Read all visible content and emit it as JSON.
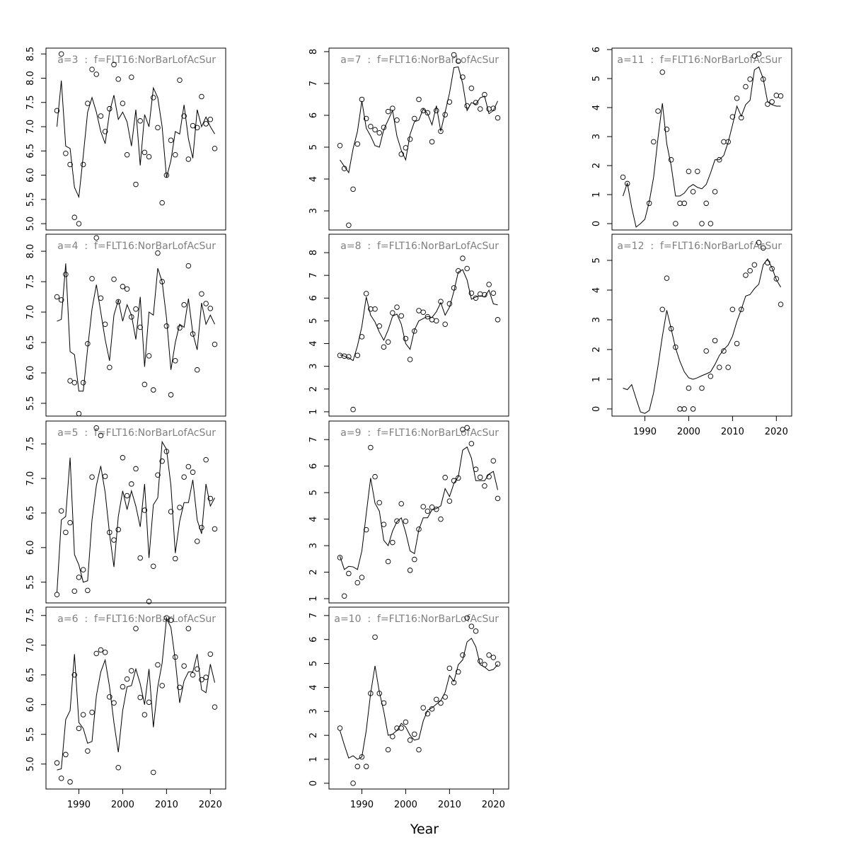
{
  "x": [
    1985,
    1986,
    1987,
    1988,
    1989,
    1990,
    1991,
    1992,
    1993,
    1994,
    1995,
    1996,
    1997,
    1998,
    1999,
    2000,
    2001,
    2002,
    2003,
    2004,
    2005,
    2006,
    2007,
    2008,
    2009,
    2010,
    2011,
    2012,
    2013,
    2014,
    2015,
    2016,
    2017,
    2018,
    2019,
    2020,
    2021
  ],
  "xlim": [
    1982.5,
    2023.5
  ],
  "xticks": [
    1990,
    2000,
    2010,
    2020
  ],
  "xlabel": "Year",
  "chart_data": [
    {
      "type": "scatter-line",
      "title": "a=3  :  f=FLT16:NorBarLofAcSur",
      "ylim": [
        4.87,
        8.62
      ],
      "yticks": [
        {
          "value": 5,
          "label": "5.0"
        },
        {
          "value": 5.5,
          "label": "5.5"
        },
        {
          "value": 6,
          "label": "6.0"
        },
        {
          "value": 6.5,
          "label": "6.5"
        },
        {
          "value": 7,
          "label": "7.0"
        },
        {
          "value": 7.5,
          "label": "7.5"
        },
        {
          "value": 8,
          "label": "8.0"
        },
        {
          "value": 8.5,
          "label": "8.5"
        }
      ],
      "points": [
        7.33,
        8.5,
        6.45,
        6.22,
        5.13,
        5.0,
        6.22,
        7.48,
        8.18,
        8.08,
        7.22,
        6.9,
        7.37,
        8.28,
        7.98,
        7.48,
        6.42,
        8.02,
        5.81,
        7.12,
        6.47,
        6.38,
        7.6,
        6.98,
        5.43,
        6.0,
        6.72,
        6.42,
        7.96,
        7.22,
        6.33,
        7.02,
        6.98,
        7.62,
        7.06,
        7.15,
        6.55
      ],
      "line": [
        7.0,
        7.95,
        6.6,
        6.55,
        5.75,
        5.55,
        6.4,
        7.3,
        7.6,
        7.3,
        6.9,
        6.65,
        7.3,
        7.65,
        7.15,
        7.3,
        7.1,
        6.6,
        7.35,
        6.2,
        7.25,
        7.0,
        7.8,
        7.6,
        7.0,
        5.95,
        6.3,
        6.9,
        6.85,
        7.45,
        6.75,
        6.35,
        7.35,
        7.0,
        7.2,
        7.0,
        6.85
      ]
    },
    {
      "type": "scatter-line",
      "title": "a=4  :  f=FLT16:NorBarLofAcSur",
      "ylim": [
        5.29,
        8.28
      ],
      "yticks": [
        {
          "value": 5.5,
          "label": "5.5"
        },
        {
          "value": 6,
          "label": "6.0"
        },
        {
          "value": 6.5,
          "label": "6.5"
        },
        {
          "value": 7,
          "label": "7.0"
        },
        {
          "value": 7.5,
          "label": "7.5"
        },
        {
          "value": 8,
          "label": "8.0"
        }
      ],
      "points": [
        7.25,
        7.2,
        7.62,
        5.87,
        5.84,
        5.33,
        5.84,
        6.48,
        7.55,
        8.22,
        7.23,
        6.8,
        6.09,
        7.54,
        7.17,
        7.42,
        7.38,
        6.92,
        7.05,
        6.75,
        5.81,
        6.28,
        5.72,
        7.97,
        7.5,
        6.77,
        5.64,
        6.2,
        6.74,
        7.12,
        7.76,
        6.64,
        6.05,
        7.3,
        7.14,
        7.06,
        6.47
      ],
      "line": [
        6.85,
        6.88,
        7.8,
        6.35,
        6.3,
        5.7,
        5.7,
        6.4,
        7.05,
        7.45,
        7.0,
        6.55,
        6.2,
        6.95,
        7.2,
        6.85,
        7.12,
        6.95,
        6.55,
        7.25,
        6.1,
        7.0,
        6.95,
        7.72,
        7.5,
        6.9,
        6.05,
        6.5,
        6.8,
        6.75,
        7.22,
        6.65,
        6.38,
        7.15,
        6.8,
        6.95,
        6.8
      ]
    },
    {
      "type": "scatter-line",
      "title": "a=5  :  f=FLT16:NorBarLofAcSur",
      "ylim": [
        5.2,
        7.83
      ],
      "yticks": [
        {
          "value": 5.5,
          "label": "5.5"
        },
        {
          "value": 6,
          "label": "6.0"
        },
        {
          "value": 6.5,
          "label": "6.5"
        },
        {
          "value": 7,
          "label": "7.0"
        },
        {
          "value": 7.5,
          "label": "7.5"
        }
      ],
      "points": [
        5.32,
        6.53,
        6.22,
        6.36,
        5.37,
        5.57,
        5.68,
        5.38,
        7.02,
        7.73,
        7.62,
        7.03,
        6.22,
        6.11,
        6.26,
        7.3,
        6.75,
        6.92,
        7.14,
        5.85,
        6.54,
        5.22,
        5.73,
        7.05,
        7.25,
        7.39,
        6.52,
        5.84,
        6.58,
        7.02,
        7.17,
        7.09,
        6.09,
        6.29,
        7.27,
        6.71,
        6.27
      ],
      "line": [
        5.35,
        6.4,
        6.45,
        7.3,
        5.9,
        5.75,
        5.5,
        5.52,
        6.4,
        6.9,
        7.18,
        6.8,
        6.2,
        5.72,
        6.45,
        6.82,
        6.55,
        6.82,
        6.6,
        6.3,
        6.92,
        5.85,
        6.62,
        6.72,
        7.53,
        7.42,
        6.9,
        5.92,
        6.38,
        6.65,
        6.65,
        6.98,
        6.4,
        6.2,
        6.92,
        6.6,
        6.72
      ]
    },
    {
      "type": "scatter-line",
      "title": "a=6  :  f=FLT16:NorBarLofAcSur",
      "ylim": [
        4.58,
        7.64
      ],
      "yticks": [
        {
          "value": 5,
          "label": "5.0"
        },
        {
          "value": 5.5,
          "label": "5.5"
        },
        {
          "value": 6,
          "label": "6.0"
        },
        {
          "value": 6.5,
          "label": "6.5"
        },
        {
          "value": 7,
          "label": "7.0"
        },
        {
          "value": 7.5,
          "label": "7.5"
        }
      ],
      "points": [
        5.02,
        4.76,
        5.16,
        4.7,
        6.5,
        5.6,
        5.83,
        5.22,
        5.87,
        6.86,
        6.92,
        6.88,
        6.13,
        6.03,
        4.94,
        6.3,
        6.43,
        6.57,
        7.28,
        6.12,
        5.83,
        6.04,
        4.86,
        6.67,
        6.32,
        7.46,
        7.42,
        6.8,
        6.29,
        6.65,
        7.28,
        6.5,
        6.6,
        6.42,
        6.46,
        6.85,
        5.96
      ],
      "line": [
        4.9,
        4.92,
        5.75,
        5.9,
        6.85,
        5.7,
        5.6,
        5.35,
        5.38,
        6.15,
        6.55,
        6.75,
        6.3,
        5.7,
        5.2,
        5.9,
        6.3,
        6.32,
        6.6,
        6.35,
        6.0,
        6.6,
        5.62,
        6.3,
        6.7,
        7.45,
        7.3,
        6.75,
        6.03,
        6.4,
        6.55,
        6.55,
        6.85,
        6.25,
        6.2,
        6.68,
        6.37
      ]
    },
    {
      "type": "scatter-line",
      "title": "a=7  :  f=FLT16:NorBarLofAcSur",
      "ylim": [
        2.4,
        8.11
      ],
      "yticks": [
        3,
        4,
        5,
        6,
        7,
        8
      ],
      "points": [
        5.05,
        4.33,
        2.55,
        3.68,
        5.1,
        6.5,
        5.9,
        5.65,
        5.55,
        5.45,
        5.62,
        6.12,
        6.22,
        5.85,
        4.78,
        4.98,
        5.25,
        5.9,
        6.5,
        6.15,
        6.08,
        5.17,
        6.15,
        5.5,
        6.02,
        6.42,
        7.9,
        7.7,
        7.2,
        6.3,
        6.85,
        6.4,
        6.2,
        6.65,
        6.2,
        6.22,
        5.92
      ],
      "line": [
        4.6,
        4.4,
        4.2,
        4.95,
        5.5,
        6.45,
        5.6,
        5.35,
        5.05,
        5.0,
        5.55,
        5.85,
        6.15,
        5.35,
        4.9,
        4.6,
        5.4,
        5.8,
        5.85,
        6.2,
        6.05,
        5.7,
        6.3,
        5.5,
        6.1,
        6.7,
        7.5,
        7.52,
        7.0,
        6.15,
        6.4,
        6.35,
        6.55,
        6.6,
        6.05,
        6.15,
        6.45
      ]
    },
    {
      "type": "scatter-line",
      "title": "a=8  :  f=FLT16:NorBarLofAcSur",
      "ylim": [
        0.81,
        8.81
      ],
      "yticks": [
        1,
        2,
        3,
        4,
        5,
        6,
        7,
        8
      ],
      "points": [
        3.48,
        3.45,
        3.42,
        1.1,
        3.48,
        4.3,
        6.2,
        5.52,
        5.52,
        4.77,
        3.85,
        4.07,
        5.35,
        5.6,
        5.22,
        4.22,
        3.3,
        4.55,
        5.45,
        5.38,
        5.18,
        5.05,
        5.0,
        5.85,
        4.85,
        5.75,
        6.45,
        7.2,
        7.75,
        7.3,
        6.22,
        6.0,
        6.18,
        6.15,
        6.6,
        6.22,
        5.05
      ],
      "line": [
        3.5,
        3.45,
        3.38,
        3.25,
        3.9,
        4.75,
        6.05,
        5.25,
        4.95,
        4.5,
        4.15,
        4.6,
        5.2,
        5.3,
        4.85,
        4.0,
        3.75,
        4.6,
        5.0,
        5.1,
        5.2,
        5.15,
        5.4,
        5.8,
        5.25,
        5.6,
        6.3,
        7.15,
        7.25,
        6.8,
        5.95,
        6.05,
        6.1,
        6.05,
        6.35,
        5.75,
        5.7
      ]
    },
    {
      "type": "scatter-line",
      "title": "a=9  :  f=FLT16:NorBarLofAcSur",
      "ylim": [
        0.84,
        7.7
      ],
      "yticks": [
        1,
        2,
        3,
        4,
        5,
        6,
        7
      ],
      "points": [
        2.55,
        1.1,
        1.95,
        null,
        1.6,
        1.8,
        3.6,
        6.7,
        5.6,
        4.62,
        3.8,
        2.4,
        3.12,
        3.93,
        4.58,
        3.92,
        2.07,
        2.48,
        3.62,
        4.47,
        4.3,
        4.45,
        4.37,
        4.0,
        5.57,
        4.68,
        5.45,
        5.55,
        7.38,
        7.45,
        6.85,
        5.88,
        5.58,
        5.25,
        5.6,
        6.2,
        4.78
      ],
      "line": [
        2.6,
        2.1,
        2.22,
        2.2,
        2.1,
        2.8,
        4.2,
        5.55,
        4.6,
        4.3,
        3.2,
        3.0,
        3.55,
        3.9,
        4.05,
        3.5,
        2.8,
        2.7,
        3.6,
        4.05,
        4.05,
        4.35,
        4.4,
        4.5,
        5.15,
        4.85,
        5.35,
        5.6,
        6.6,
        6.72,
        6.3,
        5.45,
        5.45,
        5.45,
        5.7,
        5.8,
        5.1
      ]
    },
    {
      "type": "scatter-line",
      "title": "a=10  :  f=FLT16:NorBarLofAcSur",
      "ylim": [
        -0.24,
        7.35
      ],
      "yticks": [
        0,
        1,
        2,
        3,
        4,
        5,
        6,
        7
      ],
      "points": [
        2.3,
        null,
        null,
        0.0,
        0.7,
        1.1,
        0.7,
        3.75,
        6.1,
        3.75,
        3.35,
        1.4,
        1.95,
        2.3,
        2.3,
        2.55,
        1.8,
        2.05,
        1.4,
        3.15,
        2.9,
        3.1,
        3.5,
        3.35,
        3.6,
        4.8,
        4.2,
        4.65,
        5.35,
        6.9,
        6.55,
        6.35,
        5.1,
        4.95,
        5.35,
        5.25,
        4.98
      ],
      "line": [
        2.2,
        1.6,
        1.05,
        1.15,
        1.0,
        1.1,
        2.2,
        3.75,
        4.9,
        3.8,
        3.0,
        2.0,
        2.05,
        2.2,
        2.5,
        2.35,
        2.0,
        1.8,
        1.85,
        2.6,
        3.05,
        3.15,
        3.3,
        3.45,
        3.8,
        4.5,
        4.25,
        4.95,
        5.15,
        5.9,
        6.05,
        5.7,
        4.95,
        4.85,
        4.7,
        4.75,
        4.95
      ]
    },
    {
      "type": "scatter-line",
      "title": "a=11  :  f=FLT16:NorBarLofAcSur",
      "ylim": [
        -0.22,
        6.05
      ],
      "yticks": [
        0,
        1,
        2,
        3,
        4,
        5,
        6
      ],
      "points": [
        1.6,
        1.38,
        null,
        null,
        null,
        null,
        0.7,
        2.82,
        3.88,
        5.22,
        3.25,
        2.2,
        0.0,
        0.7,
        0.7,
        1.8,
        1.1,
        1.8,
        0.0,
        0.7,
        0.0,
        1.1,
        2.2,
        2.82,
        2.82,
        3.68,
        4.32,
        3.65,
        4.72,
        4.98,
        5.78,
        5.85,
        4.98,
        4.12,
        4.2,
        4.42,
        4.4
      ],
      "line": [
        0.95,
        1.4,
        0.55,
        -0.12,
        0.0,
        0.15,
        0.75,
        1.6,
        2.95,
        4.15,
        2.75,
        2.0,
        0.95,
        0.95,
        1.05,
        1.25,
        1.35,
        1.25,
        1.2,
        1.35,
        1.75,
        2.2,
        2.2,
        2.35,
        2.8,
        3.4,
        4.05,
        3.7,
        4.1,
        4.25,
        5.3,
        5.4,
        5.0,
        4.2,
        4.1,
        4.05,
        4.05
      ]
    },
    {
      "type": "scatter-line",
      "title": "a=12  :  f=FLT16:NorBarLofAcSur",
      "ylim": [
        -0.24,
        5.88
      ],
      "yticks": [
        0,
        1,
        2,
        3,
        4,
        5
      ],
      "points": [
        null,
        null,
        null,
        null,
        null,
        null,
        null,
        null,
        null,
        3.35,
        4.4,
        2.7,
        2.08,
        0.0,
        0.0,
        0.7,
        0.0,
        null,
        0.7,
        1.95,
        1.1,
        2.3,
        1.4,
        1.95,
        1.4,
        3.35,
        2.2,
        3.35,
        4.5,
        4.65,
        4.85,
        5.6,
        5.42,
        4.92,
        4.72,
        4.38,
        3.52
      ],
      "line": [
        0.7,
        0.65,
        0.82,
        0.35,
        -0.1,
        -0.15,
        -0.05,
        0.55,
        1.45,
        2.45,
        3.32,
        2.7,
        2.05,
        1.6,
        1.25,
        1.05,
        1.0,
        1.05,
        1.12,
        1.18,
        1.25,
        1.5,
        1.8,
        2.0,
        2.15,
        2.45,
        2.95,
        3.35,
        3.8,
        3.85,
        4.05,
        4.2,
        4.85,
        5.05,
        4.75,
        4.35,
        4.1
      ]
    }
  ]
}
